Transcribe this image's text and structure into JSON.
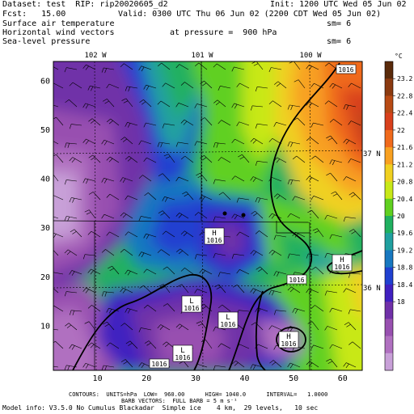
{
  "header": {
    "dataset": "Dataset: test  RIP: rip20020605_d2",
    "init": "Init: 1200 UTC Wed 05 Jun 02",
    "fcst": "Fcst:   15.00",
    "valid": "Valid: 0300 UTC Thu 06 Jun 02 (2200 CDT Wed 05 Jun 02)",
    "field1": "Surface air temperature",
    "field1_sm": "sm= 6",
    "field2": "Horizontal wind vectors",
    "pressure": "at pressure =  900 hPa",
    "field3": "Sea-level pressure",
    "field3_sm": "sm= 6"
  },
  "map": {
    "lon_labels": [
      "102 W",
      "101 W",
      "100 W"
    ],
    "lat_labels": [
      "37 N",
      "36 N"
    ],
    "x_ticks": [
      "10",
      "20",
      "30",
      "40",
      "50",
      "60"
    ],
    "y_ticks": [
      "10",
      "20",
      "30",
      "40",
      "50",
      "60"
    ],
    "pressure_labels": [
      {
        "text": "1016",
        "kind": "label"
      },
      {
        "text": "1016",
        "kind": "H"
      },
      {
        "text": "1016",
        "kind": "label"
      },
      {
        "text": "1016",
        "kind": "L"
      },
      {
        "text": "1016",
        "kind": "L"
      },
      {
        "text": "1016",
        "kind": "H"
      },
      {
        "text": "1016",
        "kind": "H"
      },
      {
        "text": "1016",
        "kind": "L"
      },
      {
        "text": "1016",
        "kind": "label"
      }
    ],
    "center_letters": {
      "high": "H",
      "low": "L"
    }
  },
  "colorbar": {
    "unit": "°C",
    "labels": [
      "23.2",
      "22.8",
      "22.4",
      "22",
      "21.6",
      "21.2",
      "20.8",
      "20.4",
      "20",
      "19.6",
      "19.2",
      "18.8",
      "18.4",
      "18"
    ],
    "colors": [
      "#5a2a0a",
      "#8b3a10",
      "#b84a14",
      "#d8401c",
      "#f06a1c",
      "#f8a020",
      "#f0d020",
      "#c8e818",
      "#60d020",
      "#20b060",
      "#20a0a0",
      "#1878c0",
      "#2040d0",
      "#4020c0",
      "#7030a8",
      "#9850b0",
      "#b070c0",
      "#c8a0d8"
    ]
  },
  "footer": {
    "contours": "CONTOURS:  UNITS=hPa  LOW=  960.00      HIGH= 1040.0      INTERVAL=   1.0000",
    "barbs": "BARB VECTORS:  FULL BARB = 5 m s⁻¹",
    "model": "Model info: V3.5.0 No Cumulus Blackadar  Simple ice    4 km,  29 levels,   10 sec"
  }
}
